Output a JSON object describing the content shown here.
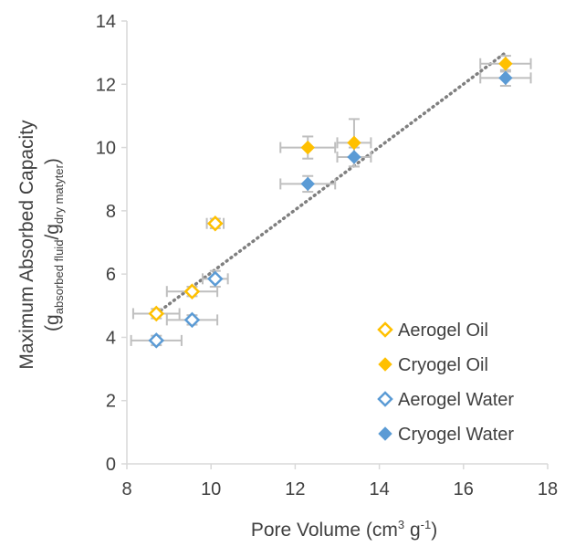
{
  "chart_data": {
    "type": "scatter",
    "title": "",
    "xlabel_main": "Pore Volume (cm",
    "xlabel_sup1": "3",
    "xlabel_mid": " g",
    "xlabel_sup2": "-1",
    "xlabel_end": ")",
    "ylabel_line1": "Maximum Absorbed Capacity",
    "ylabel_line2_parts": {
      "open": "(g",
      "sub1": "absorbed fluid",
      "mid": "/g",
      "sub2": "dry matyter",
      "close": ")"
    },
    "xlim": [
      8,
      18
    ],
    "ylim": [
      0,
      14
    ],
    "x_ticks": [
      8,
      10,
      12,
      14,
      16,
      18
    ],
    "y_ticks": [
      0,
      2,
      4,
      6,
      8,
      10,
      12,
      14
    ],
    "grid": false,
    "legend_position": "bottom-right",
    "colors": {
      "oil": "#FFC000",
      "water": "#5B9BD5",
      "errorbar": "#BFBFBF",
      "trend": "#7F7F7F",
      "axis": "#D9D9D9"
    },
    "series": [
      {
        "name": "Aerogel Oil",
        "marker": "hollow-diamond",
        "color": "#FFC000",
        "points": [
          {
            "x": 8.7,
            "y": 4.75,
            "xerr": 0.55,
            "yerr": 0.15
          },
          {
            "x": 9.55,
            "y": 5.45,
            "xerr": 0.6,
            "yerr": 0.15
          },
          {
            "x": 10.1,
            "y": 7.6,
            "xerr": 0.2,
            "yerr": 0.15
          }
        ]
      },
      {
        "name": "Cryogel Oil",
        "marker": "filled-diamond",
        "color": "#FFC000",
        "points": [
          {
            "x": 12.3,
            "y": 10.0,
            "xerr": 0.65,
            "yerr": 0.35
          },
          {
            "x": 13.4,
            "y": 10.15,
            "xerr": 0.4,
            "yerr": 0.75
          },
          {
            "x": 17.0,
            "y": 12.65,
            "xerr": 0.6,
            "yerr": 0.25
          }
        ]
      },
      {
        "name": "Aerogel Water",
        "marker": "hollow-diamond",
        "color": "#5B9BD5",
        "points": [
          {
            "x": 8.7,
            "y": 3.9,
            "xerr": 0.6,
            "yerr": 0.15
          },
          {
            "x": 9.55,
            "y": 4.55,
            "xerr": 0.6,
            "yerr": 0.15
          },
          {
            "x": 10.1,
            "y": 5.85,
            "xerr": 0.3,
            "yerr": 0.25
          }
        ]
      },
      {
        "name": "Cryogel Water",
        "marker": "filled-diamond",
        "color": "#5B9BD5",
        "points": [
          {
            "x": 12.3,
            "y": 8.85,
            "xerr": 0.65,
            "yerr": 0.25
          },
          {
            "x": 13.4,
            "y": 9.7,
            "xerr": 0.4,
            "yerr": 0.3
          },
          {
            "x": 17.0,
            "y": 12.2,
            "xerr": 0.6,
            "yerr": 0.25
          }
        ]
      }
    ],
    "trendline": {
      "style": "dotted",
      "x": [
        8.7,
        17.0
      ],
      "y": [
        4.75,
        13.0
      ]
    }
  }
}
